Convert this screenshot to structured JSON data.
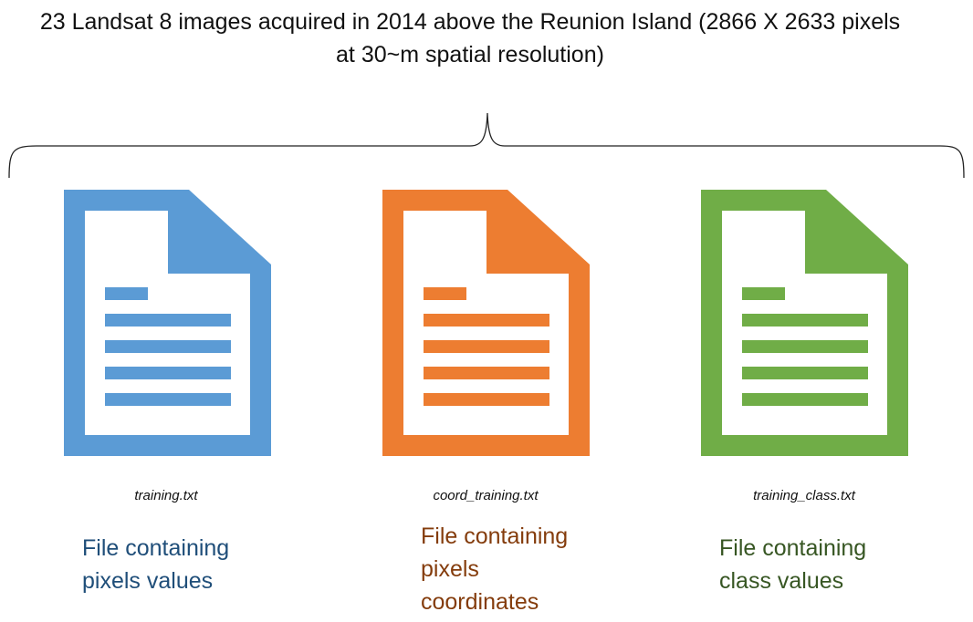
{
  "title": "23 Landsat 8 images acquired in 2014 above the Reunion Island (2866 X 2633 pixels\nat 30~m spatial resolution)",
  "files": [
    {
      "filename": "training.txt",
      "description": "File containing\npixels values",
      "color": "#5B9BD5",
      "text_color": "#1F4E79",
      "icon": "document-icon"
    },
    {
      "filename": "coord_training.txt",
      "description": "File containing\npixels\ncoordinates",
      "color": "#ED7D31",
      "text_color": "#843C0C",
      "icon": "document-icon"
    },
    {
      "filename": "training_class.txt",
      "description": "File containing\nclass values",
      "color": "#70AD47",
      "text_color": "#375623",
      "icon": "document-icon"
    }
  ]
}
